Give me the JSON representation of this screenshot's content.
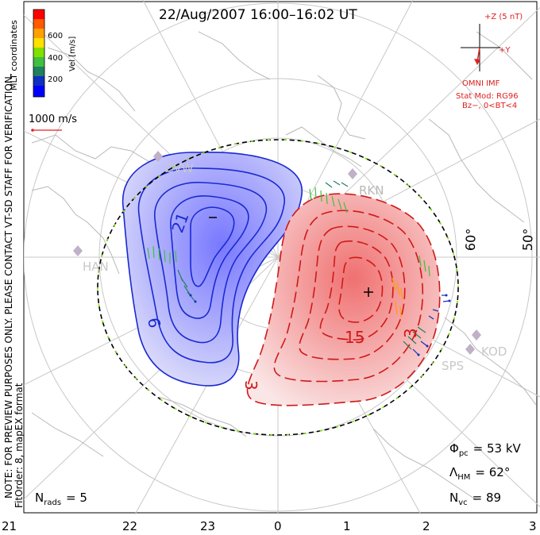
{
  "title": "22/Aug/2007 16:00–16:02 UT",
  "coord_label": "MLT coordinates",
  "velocity_scale": {
    "unit_label": "Vel [m/s]",
    "ticks": [
      "600",
      "400",
      "200"
    ],
    "colors": [
      "#ff0000",
      "#ff5a00",
      "#ffa000",
      "#ffe000",
      "#80e000",
      "#40c040",
      "#208060",
      "#1030c0",
      "#0000ff"
    ]
  },
  "vector_reference": "1000 m/s",
  "watermark": "NOTE: FOR PREVIEW PURPOSES ONLY. PLEASE CONTACT VT-SD STAFF FOR VERIFICATION.",
  "fit_info": "FitOrder: 8, mapEX format",
  "imf": {
    "z_label": "+Z (5 nT)",
    "y_label": "+Y",
    "source": "OMNI IMF",
    "model": "Stat Mod: RG96",
    "model_params": "Bz−, 0<BT<4"
  },
  "stations": [
    "CVW",
    "RKN",
    "HAN",
    "KOD",
    "SPS"
  ],
  "latitude_labels": [
    "60°",
    "50°"
  ],
  "contour_labels": [
    "21",
    "9",
    "15",
    "3",
    "3"
  ],
  "bottom_axis": [
    "21",
    "22",
    "23",
    "0",
    "1",
    "2",
    "3"
  ],
  "stats": {
    "phi_pc_label": "Φ",
    "phi_pc_sub": "pc",
    "phi_pc_value": "= 53 kV",
    "lambda_label": "Λ",
    "lambda_sub": "HM",
    "lambda_value": "= 62°",
    "nvc_label": "N",
    "nvc_sub": "vc",
    "nvc_value": "= 89",
    "nrads_label": "N",
    "nrads_sub": "rads",
    "nrads_value": "= 5"
  },
  "colors": {
    "negative_cell": "#1a2ad0",
    "positive_cell": "#d01818",
    "hmb": "#000000",
    "grid": "#c8c8c8",
    "land": "#b8b8b8"
  }
}
